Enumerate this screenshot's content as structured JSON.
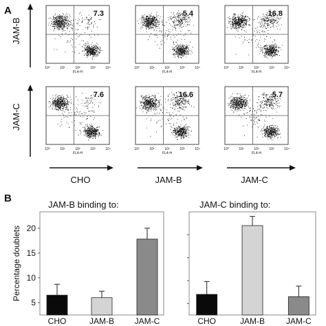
{
  "panel_labels": {
    "a": "A",
    "b": "B"
  },
  "flow": {
    "row_labels": [
      "JAM-B",
      "JAM-C"
    ],
    "col_labels": [
      "CHO",
      "JAM-B",
      "JAM-C"
    ],
    "axis_title": "FL4-H",
    "ticks": [
      "10⁰",
      "10¹",
      "10²",
      "10³",
      "10⁴"
    ],
    "quadrant_values": [
      [
        "7.3",
        "5.4",
        "16.8"
      ],
      [
        "7.6",
        "16.6",
        "5.7"
      ]
    ]
  },
  "chart_data": [
    {
      "type": "bar",
      "title": "JAM-B binding to:",
      "ylabel": "Percentage doublets",
      "categories": [
        "CHO",
        "JAM-B",
        "JAM-C"
      ],
      "values": [
        6.5,
        6.0,
        17.8
      ],
      "errors": [
        2.2,
        1.3,
        2.2
      ],
      "colors": [
        "#0a0a0a",
        "#d4d4d4",
        "#8a8a8a"
      ],
      "yticks": [
        "5",
        "10",
        "15",
        "20"
      ],
      "ylim": [
        2.5,
        23.3
      ]
    },
    {
      "type": "bar",
      "title": "JAM-C binding to:",
      "ylabel": "",
      "categories": [
        "CHO",
        "JAM-B",
        "JAM-C"
      ],
      "values": [
        7.0,
        22.0,
        6.5
      ],
      "errors": [
        2.8,
        2.0,
        2.3
      ],
      "colors": [
        "#0a0a0a",
        "#d4d4d4",
        "#8a8a8a"
      ],
      "yticks": [],
      "ylim": [
        2.5,
        25.0
      ]
    }
  ]
}
